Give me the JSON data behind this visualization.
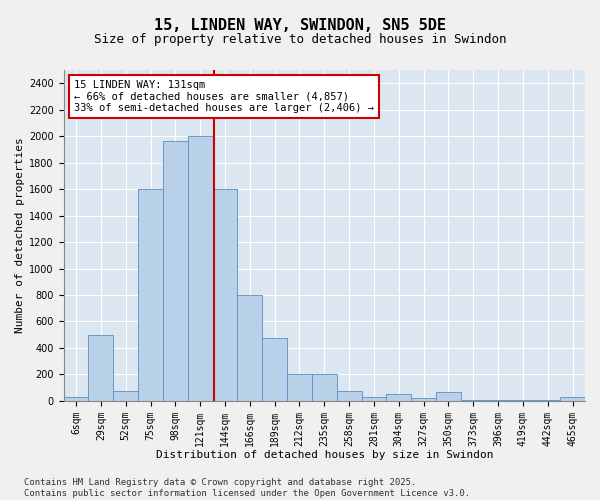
{
  "title1": "15, LINDEN WAY, SWINDON, SN5 5DE",
  "title2": "Size of property relative to detached houses in Swindon",
  "xlabel": "Distribution of detached houses by size in Swindon",
  "ylabel": "Number of detached properties",
  "categories": [
    "6sqm",
    "29sqm",
    "52sqm",
    "75sqm",
    "98sqm",
    "121sqm",
    "144sqm",
    "166sqm",
    "189sqm",
    "212sqm",
    "235sqm",
    "258sqm",
    "281sqm",
    "304sqm",
    "327sqm",
    "350sqm",
    "373sqm",
    "396sqm",
    "419sqm",
    "442sqm",
    "465sqm"
  ],
  "values": [
    30,
    500,
    75,
    1600,
    1960,
    2000,
    1600,
    800,
    475,
    200,
    200,
    75,
    30,
    50,
    20,
    70,
    10,
    10,
    5,
    5,
    30
  ],
  "bar_color": "#b8d0e8",
  "bar_edge_color": "#5a8fc0",
  "red_line_x": 5.55,
  "annotation_text": "15 LINDEN WAY: 131sqm\n← 66% of detached houses are smaller (4,857)\n33% of semi-detached houses are larger (2,406) →",
  "annotation_box_color": "#ffffff",
  "annotation_box_edge_color": "#cc0000",
  "red_line_color": "#cc0000",
  "ylim": [
    0,
    2500
  ],
  "yticks": [
    0,
    200,
    400,
    600,
    800,
    1000,
    1200,
    1400,
    1600,
    1800,
    2000,
    2200,
    2400
  ],
  "plot_bg_color": "#dce6f0",
  "fig_bg_color": "#f0f0f0",
  "grid_color": "#ffffff",
  "footer": "Contains HM Land Registry data © Crown copyright and database right 2025.\nContains public sector information licensed under the Open Government Licence v3.0.",
  "title1_fontsize": 11,
  "title2_fontsize": 9,
  "xlabel_fontsize": 8,
  "ylabel_fontsize": 8,
  "tick_fontsize": 7,
  "annotation_fontsize": 7.5,
  "footer_fontsize": 6.5
}
